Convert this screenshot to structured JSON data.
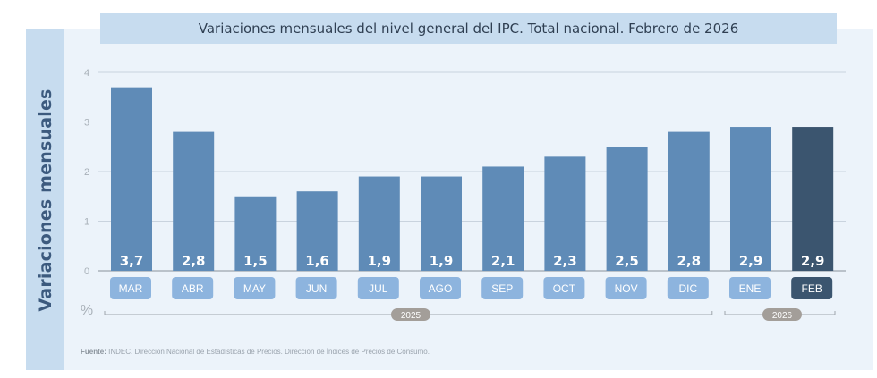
{
  "title": "Variaciones mensuales del nivel general del IPC. Total nacional. Febrero de 2026",
  "side_label": "Variaciones mensuales",
  "source": {
    "label": "Fuente:",
    "text": "INDEC. Dirección Nacional de Estadísticas de Precios. Dirección de Índices de Precios de Consumo."
  },
  "colors": {
    "bar": "#5f8bb7",
    "bar_highlight": "#3b556f",
    "month_pill": "#8db4de",
    "month_pill_highlight": "#3b556f",
    "year_pill": "#a39e99",
    "grid": "#c9d3de",
    "axis_text": "#a8b0b8"
  },
  "chart_data": {
    "type": "bar",
    "title": "Variaciones mensuales del nivel general del IPC. Total nacional. Febrero de 2026",
    "xlabel": "",
    "ylabel": "Variaciones mensuales",
    "y_unit": "%",
    "ylim": [
      0,
      4
    ],
    "yticks": [
      "0",
      "1",
      "2",
      "3",
      "4"
    ],
    "grid": true,
    "categories": [
      "MAR",
      "ABR",
      "MAY",
      "JUN",
      "JUL",
      "AGO",
      "SEP",
      "OCT",
      "NOV",
      "DIC",
      "ENE",
      "FEB"
    ],
    "values": [
      3.7,
      2.8,
      1.5,
      1.6,
      1.9,
      1.9,
      2.1,
      2.3,
      2.5,
      2.8,
      2.9,
      2.9
    ],
    "value_labels": [
      "3,7",
      "2,8",
      "1,5",
      "1,6",
      "1,9",
      "1,9",
      "2,1",
      "2,3",
      "2,5",
      "2,8",
      "2,9",
      "2,9"
    ],
    "highlight": "FEB",
    "year_groups": [
      {
        "label": "2025",
        "from": "MAR",
        "to": "DIC"
      },
      {
        "label": "2026",
        "from": "ENE",
        "to": "FEB"
      }
    ]
  }
}
